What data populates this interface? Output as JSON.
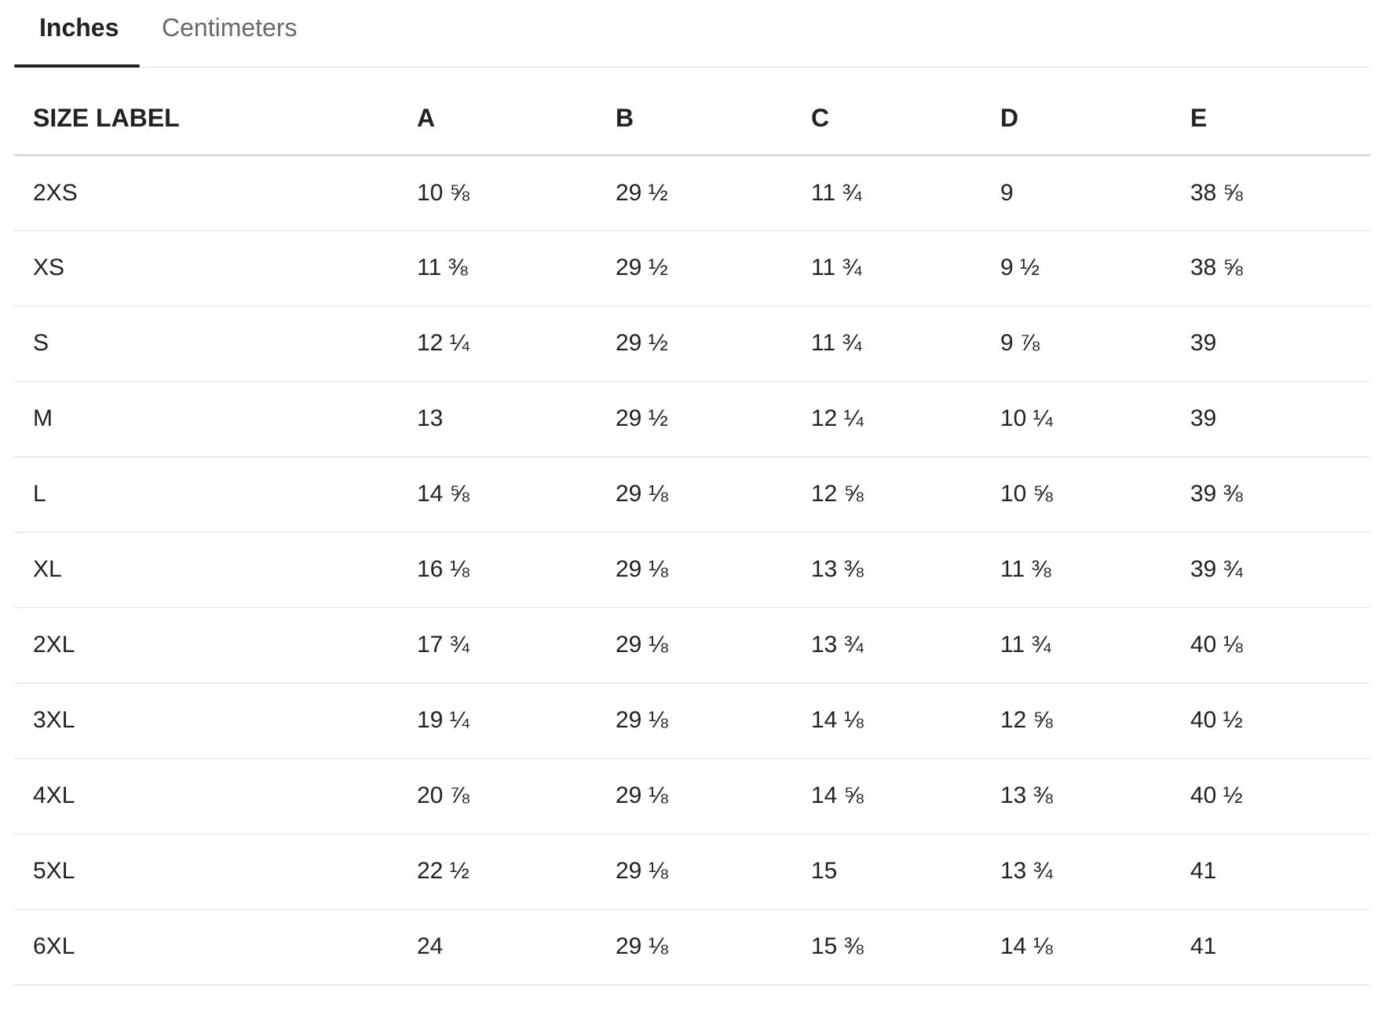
{
  "tabs": [
    {
      "label": "Inches",
      "active": true
    },
    {
      "label": "Centimeters",
      "active": false
    }
  ],
  "table": {
    "headers": [
      "SIZE LABEL",
      "A",
      "B",
      "C",
      "D",
      "E"
    ],
    "rows": [
      [
        "2XS",
        "10 ⅝",
        "29 ½",
        "11 ¾",
        "9",
        "38 ⅝"
      ],
      [
        "XS",
        "11 ⅜",
        "29 ½",
        "11 ¾",
        "9 ½",
        "38 ⅝"
      ],
      [
        "S",
        "12 ¼",
        "29 ½",
        "11 ¾",
        "9 ⅞",
        "39"
      ],
      [
        "M",
        "13",
        "29 ½",
        "12 ¼",
        "10 ¼",
        "39"
      ],
      [
        "L",
        "14 ⅝",
        "29 ⅛",
        "12 ⅝",
        "10 ⅝",
        "39 ⅜"
      ],
      [
        "XL",
        "16 ⅛",
        "29 ⅛",
        "13 ⅜",
        "11 ⅜",
        "39 ¾"
      ],
      [
        "2XL",
        "17 ¾",
        "29 ⅛",
        "13 ¾",
        "11 ¾",
        "40 ⅛"
      ],
      [
        "3XL",
        "19 ¼",
        "29 ⅛",
        "14 ⅛",
        "12 ⅝",
        "40 ½"
      ],
      [
        "4XL",
        "20 ⅞",
        "29 ⅛",
        "14 ⅝",
        "13 ⅜",
        "40 ½"
      ],
      [
        "5XL",
        "22 ½",
        "29 ⅛",
        "15",
        "13 ¾",
        "41"
      ],
      [
        "6XL",
        "24",
        "29 ⅛",
        "15 ⅜",
        "14 ⅛",
        "41"
      ]
    ]
  }
}
